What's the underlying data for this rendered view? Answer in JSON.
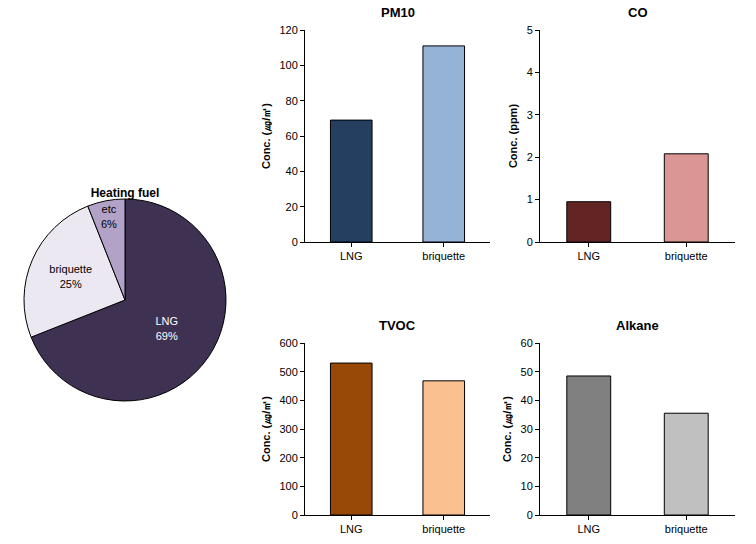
{
  "chart_data": [
    {
      "type": "pie",
      "title": "Heating fuel",
      "categories": [
        "LNG",
        "briquette",
        "etc"
      ],
      "values": [
        69,
        25,
        6
      ],
      "value_labels": [
        "69%",
        "25%",
        "6%"
      ],
      "colors": [
        "#3f3151",
        "#ebe8f2",
        "#b3a2c7"
      ],
      "data_labels": true
    },
    {
      "type": "bar",
      "title": "PM10",
      "ylabel": "Conc. (㎍/㎥)",
      "categories": [
        "LNG",
        "briquette"
      ],
      "values": [
        69,
        111
      ],
      "colors": [
        "#243f60",
        "#95b3d7"
      ],
      "ylim": [
        0,
        120
      ],
      "yticks": [
        0,
        20,
        40,
        60,
        80,
        100,
        120
      ],
      "grid": false
    },
    {
      "type": "bar",
      "title": "CO",
      "ylabel": "Conc. (ppm)",
      "categories": [
        "LNG",
        "briquette"
      ],
      "values": [
        0.95,
        2.08
      ],
      "colors": [
        "#632523",
        "#d99694"
      ],
      "ylim": [
        0,
        5
      ],
      "yticks": [
        0,
        1,
        2,
        3,
        4,
        5
      ],
      "grid": false
    },
    {
      "type": "bar",
      "title": "TVOC",
      "ylabel": "Conc. (㎍/㎥)",
      "categories": [
        "LNG",
        "briquette"
      ],
      "values": [
        530,
        468
      ],
      "colors": [
        "#984807",
        "#fac090"
      ],
      "ylim": [
        0,
        600
      ],
      "yticks": [
        0,
        100,
        200,
        300,
        400,
        500,
        600
      ],
      "grid": false
    },
    {
      "type": "bar",
      "title": "Alkane",
      "ylabel": "Conc. (㎍/㎥)",
      "categories": [
        "LNG",
        "briquette"
      ],
      "values": [
        48.5,
        35.5
      ],
      "colors": [
        "#808080",
        "#c0c0c0"
      ],
      "ylim": [
        0,
        60
      ],
      "yticks": [
        0,
        10,
        20,
        30,
        40,
        50,
        60
      ],
      "grid": false
    }
  ]
}
